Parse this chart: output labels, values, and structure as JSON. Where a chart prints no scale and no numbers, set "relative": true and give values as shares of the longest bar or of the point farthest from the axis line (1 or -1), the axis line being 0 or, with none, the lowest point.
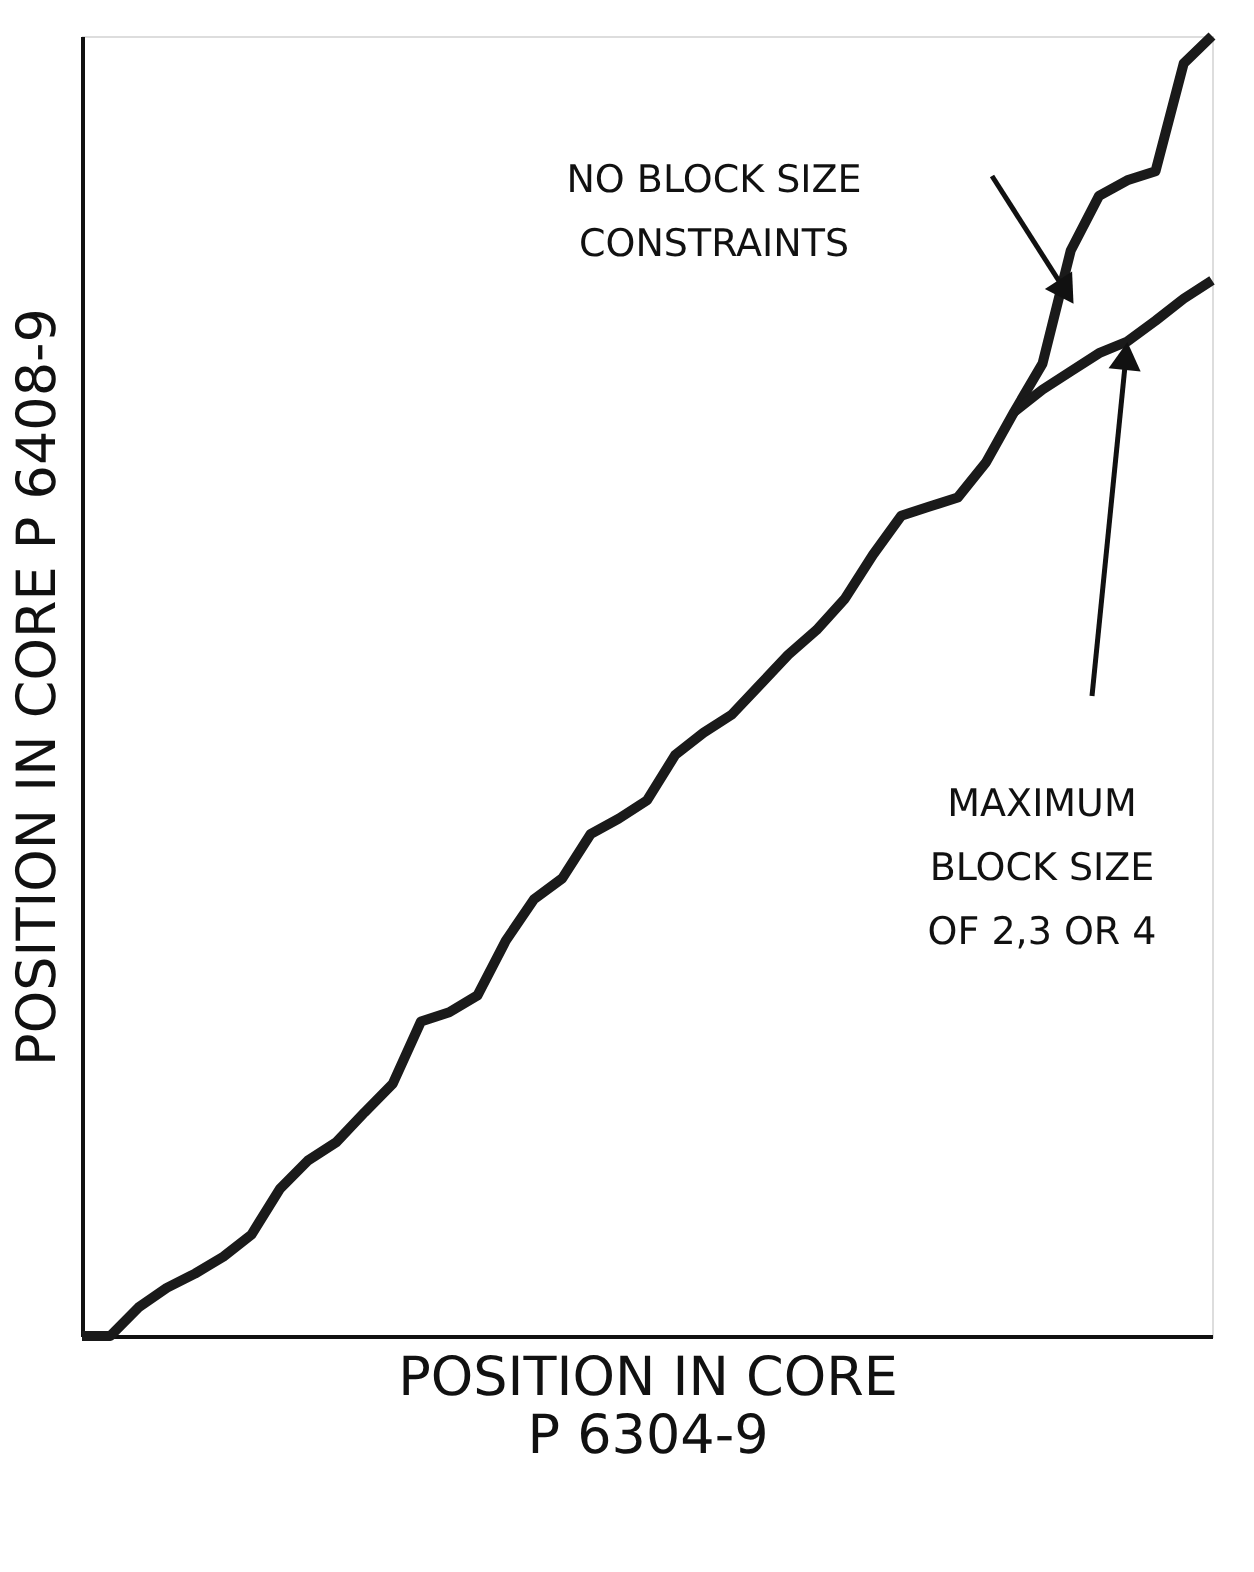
{
  "chart_data": {
    "type": "line",
    "relative": true,
    "tick_labels": false,
    "grid": false,
    "marker": "none",
    "line_style": "solid",
    "xlabel": "POSITION IN CORE\nP 6304-9",
    "ylabel": "POSITION IN CORE P 6408-9",
    "categories": [
      null,
      null,
      null,
      null,
      null,
      null,
      null,
      null,
      null,
      null,
      null,
      null,
      null,
      null,
      null,
      null,
      null,
      null,
      null,
      null,
      null,
      null,
      null,
      null,
      null,
      null,
      null,
      null,
      null,
      null,
      null,
      null,
      null,
      null,
      null,
      null,
      null,
      null,
      null,
      null,
      null
    ],
    "series": [
      {
        "color": "#1a1a1a",
        "values": [
          0,
          0,
          0.022,
          0.037,
          0.048,
          0.061,
          0.078,
          0.113,
          0.135,
          0.149,
          0.172,
          0.194,
          0.242,
          0.249,
          0.262,
          0.304,
          0.336,
          0.352,
          0.386,
          0.398,
          0.412,
          0.447,
          0.464,
          0.478,
          0.501,
          0.524,
          0.543,
          0.567,
          0.601,
          0.631,
          0.638,
          0.645,
          0.672,
          0.711,
          0.748,
          0.835,
          0.877,
          0.889,
          0.896,
          0.979,
          1
        ]
      },
      {
        "color": "#1a1a1a",
        "values": [
          null,
          null,
          null,
          null,
          null,
          null,
          null,
          null,
          null,
          null,
          null,
          null,
          null,
          null,
          null,
          null,
          null,
          null,
          null,
          null,
          null,
          null,
          null,
          null,
          null,
          null,
          null,
          null,
          null,
          null,
          null,
          null,
          null,
          0.711,
          0.728,
          0.742,
          0.756,
          0.765,
          0.781,
          0.798,
          0.812
        ]
      }
    ],
    "annotations": [
      "NO BLOCK SIZE\nCONSTRAINTS",
      "MAXIMUM\nBLOCK SIZE\nOF 2,3 OR 4"
    ]
  }
}
